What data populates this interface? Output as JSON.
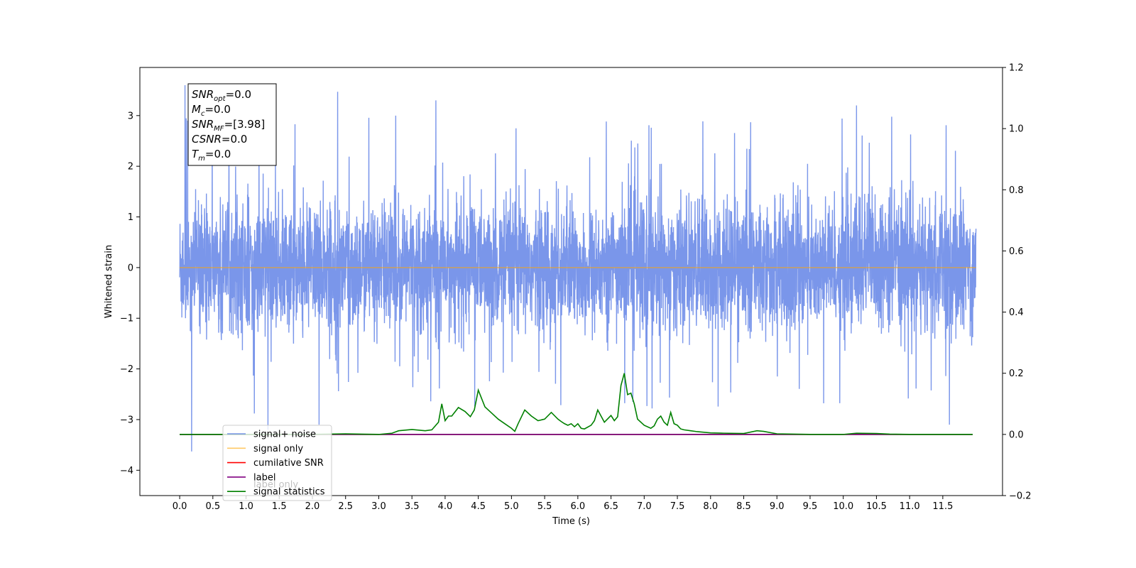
{
  "chart_data": {
    "type": "line",
    "xlabel": "Time (s)",
    "ylabel": "Whitened strain",
    "xlim": [
      -0.6,
      12.4
    ],
    "ylim": [
      -4.5,
      3.95
    ],
    "y2lim": [
      -0.2,
      1.2
    ],
    "x_ticks": [
      0.0,
      0.5,
      1.0,
      1.5,
      2.0,
      2.5,
      3.0,
      3.5,
      4.0,
      4.5,
      5.0,
      5.5,
      6.0,
      6.5,
      7.0,
      7.5,
      8.0,
      8.5,
      9.0,
      9.5,
      10.0,
      10.5,
      11.0,
      11.5
    ],
    "x_tick_labels": [
      "0.0",
      "0.5",
      "1.0",
      "1.5",
      "2.0",
      "2.5",
      "3.0",
      "3.5",
      "4.0",
      "4.5",
      "5.0",
      "5.5",
      "6.0",
      "6.5",
      "7.0",
      "7.5",
      "8.0",
      "8.5",
      "9.0",
      "9.5",
      "10.0",
      "10.5",
      "11.0",
      "11.5"
    ],
    "y_ticks": [
      -4,
      -3,
      -2,
      -1,
      0,
      1,
      2,
      3
    ],
    "y_tick_labels": [
      "−4",
      "−3",
      "−2",
      "−1",
      "0",
      "1",
      "2",
      "3"
    ],
    "y2_ticks": [
      -0.2,
      0.0,
      0.2,
      0.4,
      0.6,
      0.8,
      1.0,
      1.2
    ],
    "y2_tick_labels": [
      "−0.2",
      "0.0",
      "0.2",
      "0.4",
      "0.6",
      "0.8",
      "1.0",
      "1.2"
    ],
    "grid": false,
    "legend_position": "lower-left",
    "noise": {
      "x_range": [
        0.0,
        12.0
      ],
      "amplitude": 1.3,
      "spikes": [
        {
          "x": 0.08,
          "y": 3.6
        },
        {
          "x": 0.18,
          "y": -3.63
        },
        {
          "x": 1.33,
          "y": -3.2
        },
        {
          "x": 2.38,
          "y": 3.47
        },
        {
          "x": 3.86,
          "y": 3.3
        },
        {
          "x": 10.2,
          "y": 3.2
        },
        {
          "x": 11.6,
          "y": -3.1
        },
        {
          "x": 0.12,
          "y": 2.9
        },
        {
          "x": 2.1,
          "y": -3.1
        }
      ]
    },
    "series": [
      {
        "name": "signal+ noise",
        "color": "#4169e1",
        "opacity": 0.7
      },
      {
        "name": "signal only",
        "color": "#ffa500",
        "opacity": 0.6,
        "x": [
          0.0,
          12.0
        ],
        "y": [
          0.0,
          0.0
        ]
      },
      {
        "name": "cumilative SNR",
        "color": "#ff0000",
        "axis": "right",
        "x": [
          0.0,
          11.95
        ],
        "y": [
          0.0,
          0.0
        ]
      },
      {
        "name": "label only",
        "color": "#000000",
        "axis": "right",
        "x": [
          0.0,
          11.95
        ],
        "y": [
          0.0,
          0.0
        ]
      },
      {
        "name": "label",
        "color": "#800080",
        "axis": "right",
        "x": [
          0.0,
          11.95
        ],
        "y": [
          0.0,
          0.0
        ]
      },
      {
        "name": "signal statistics",
        "color": "#008000",
        "axis": "right",
        "x": [
          0.0,
          0.5,
          1.0,
          1.5,
          2.0,
          2.5,
          3.0,
          3.2,
          3.3,
          3.5,
          3.7,
          3.8,
          3.9,
          3.95,
          4.0,
          4.05,
          4.1,
          4.2,
          4.3,
          4.38,
          4.44,
          4.5,
          4.6,
          4.7,
          4.8,
          4.9,
          5.0,
          5.05,
          5.1,
          5.2,
          5.3,
          5.4,
          5.5,
          5.6,
          5.7,
          5.75,
          5.8,
          5.85,
          5.9,
          5.95,
          6.0,
          6.05,
          6.1,
          6.2,
          6.25,
          6.3,
          6.4,
          6.5,
          6.55,
          6.6,
          6.65,
          6.7,
          6.75,
          6.8,
          6.85,
          6.9,
          7.0,
          7.1,
          7.15,
          7.2,
          7.25,
          7.3,
          7.35,
          7.4,
          7.45,
          7.5,
          7.55,
          7.6,
          7.7,
          7.8,
          8.0,
          8.2,
          8.5,
          8.7,
          8.8,
          9.0,
          9.5,
          10.0,
          10.2,
          10.5,
          10.7,
          11.0,
          11.95
        ],
        "y": [
          0.0,
          0.0,
          0.0,
          0.0,
          0.0,
          0.002,
          0.0,
          0.004,
          0.012,
          0.016,
          0.012,
          0.015,
          0.04,
          0.1,
          0.045,
          0.06,
          0.06,
          0.088,
          0.075,
          0.058,
          0.08,
          0.145,
          0.09,
          0.07,
          0.05,
          0.035,
          0.02,
          0.01,
          0.035,
          0.08,
          0.06,
          0.045,
          0.05,
          0.072,
          0.05,
          0.042,
          0.035,
          0.03,
          0.035,
          0.025,
          0.035,
          0.02,
          0.018,
          0.03,
          0.045,
          0.08,
          0.04,
          0.062,
          0.045,
          0.058,
          0.16,
          0.2,
          0.13,
          0.135,
          0.1,
          0.05,
          0.03,
          0.02,
          0.028,
          0.05,
          0.06,
          0.04,
          0.03,
          0.072,
          0.035,
          0.03,
          0.018,
          0.015,
          0.012,
          0.009,
          0.005,
          0.004,
          0.003,
          0.012,
          0.01,
          0.002,
          0.0,
          0.0,
          0.004,
          0.003,
          0.001,
          0.0,
          0.0
        ]
      }
    ],
    "annotation": {
      "lines": [
        {
          "main": "SNR",
          "sub": "opt",
          "rest": "=0.0"
        },
        {
          "main": "M",
          "sub": "c",
          "rest": "=0.0"
        },
        {
          "main": "SNR",
          "sub": "MF",
          "rest": "=[3.98]"
        },
        {
          "main": "CSNR",
          "sub": "",
          "rest": "=0.0"
        },
        {
          "main": "T",
          "sub": "m",
          "rest": "=0.0"
        }
      ]
    }
  }
}
